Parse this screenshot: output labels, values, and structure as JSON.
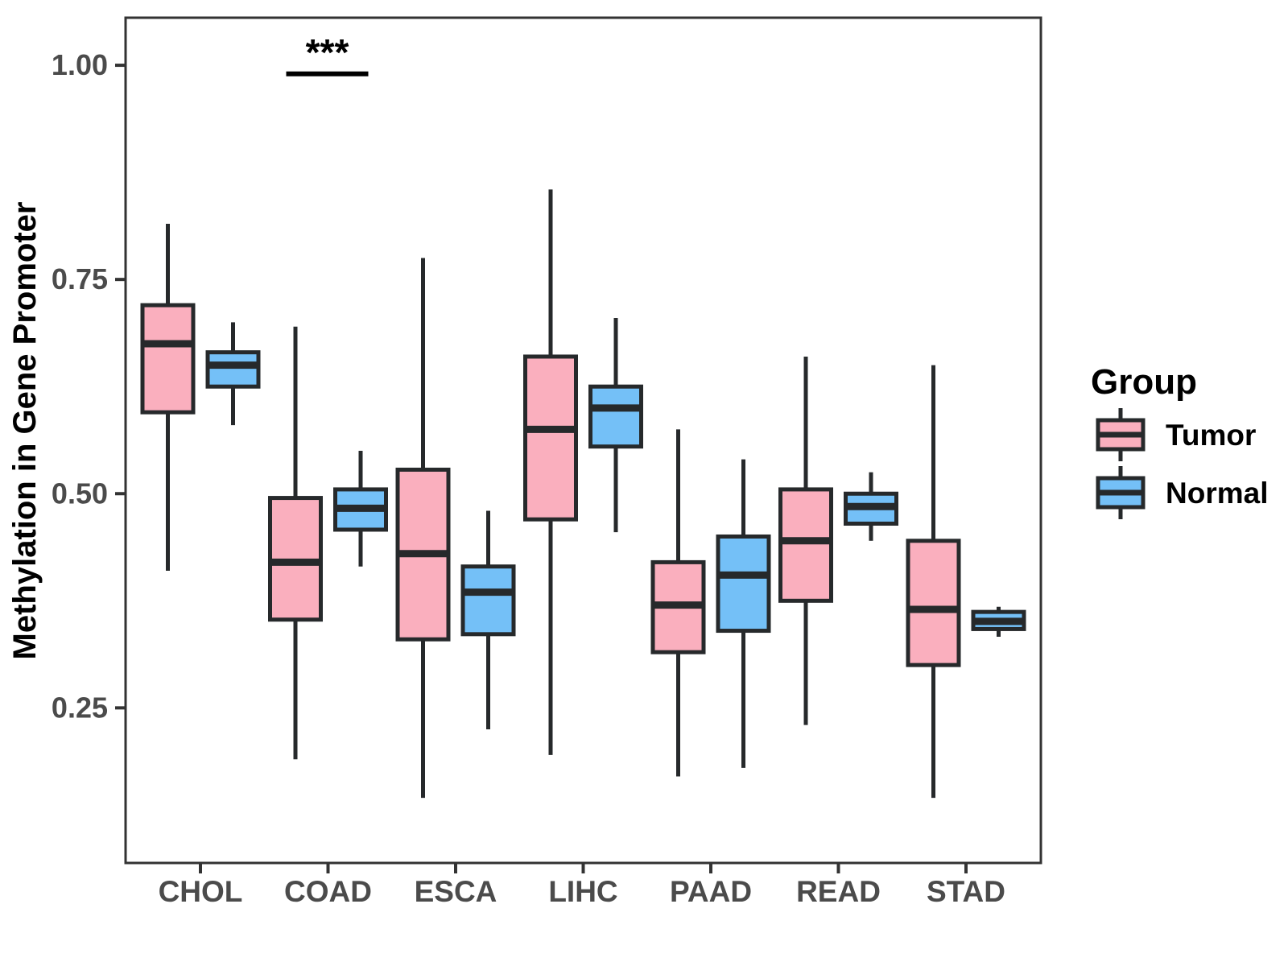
{
  "chart_data": {
    "type": "grouped_boxplot",
    "title": "",
    "ylabel": "Methylation in Gene Promoter",
    "xlabel": "",
    "categories": [
      "CHOL",
      "COAD",
      "ESCA",
      "LIHC",
      "PAAD",
      "READ",
      "STAD"
    ],
    "legend_title": "Group",
    "legend_position": "right",
    "grid": false,
    "ylim": [
      0.069,
      1.0555
    ],
    "yticks": [
      {
        "value": 0.25,
        "label": "0.25"
      },
      {
        "value": 0.5,
        "label": "0.50"
      },
      {
        "value": 0.75,
        "label": "0.75"
      },
      {
        "value": 1.0,
        "label": "1.00"
      }
    ],
    "series": [
      {
        "name": "Tumor",
        "fill_color": "#FAAFBE",
        "boxes": [
          {
            "category": "CHOL",
            "whisker_low": 0.41,
            "q1": 0.595,
            "median": 0.675,
            "q3": 0.72,
            "whisker_high": 0.815
          },
          {
            "category": "COAD",
            "whisker_low": 0.19,
            "q1": 0.353,
            "median": 0.42,
            "q3": 0.495,
            "whisker_high": 0.695
          },
          {
            "category": "ESCA",
            "whisker_low": 0.145,
            "q1": 0.33,
            "median": 0.43,
            "q3": 0.528,
            "whisker_high": 0.775
          },
          {
            "category": "LIHC",
            "whisker_low": 0.195,
            "q1": 0.47,
            "median": 0.575,
            "q3": 0.66,
            "whisker_high": 0.855
          },
          {
            "category": "PAAD",
            "whisker_low": 0.17,
            "q1": 0.315,
            "median": 0.37,
            "q3": 0.42,
            "whisker_high": 0.575
          },
          {
            "category": "READ",
            "whisker_low": 0.23,
            "q1": 0.375,
            "median": 0.445,
            "q3": 0.505,
            "whisker_high": 0.66
          },
          {
            "category": "STAD",
            "whisker_low": 0.145,
            "q1": 0.3,
            "median": 0.365,
            "q3": 0.445,
            "whisker_high": 0.65
          }
        ]
      },
      {
        "name": "Normal",
        "fill_color": "#74C0F7",
        "boxes": [
          {
            "category": "CHOL",
            "whisker_low": 0.58,
            "q1": 0.625,
            "median": 0.65,
            "q3": 0.665,
            "whisker_high": 0.7
          },
          {
            "category": "COAD",
            "whisker_low": 0.415,
            "q1": 0.458,
            "median": 0.483,
            "q3": 0.505,
            "whisker_high": 0.55
          },
          {
            "category": "ESCA",
            "whisker_low": 0.225,
            "q1": 0.336,
            "median": 0.385,
            "q3": 0.415,
            "whisker_high": 0.48
          },
          {
            "category": "LIHC",
            "whisker_low": 0.455,
            "q1": 0.555,
            "median": 0.6,
            "q3": 0.625,
            "whisker_high": 0.705
          },
          {
            "category": "PAAD",
            "whisker_low": 0.18,
            "q1": 0.34,
            "median": 0.405,
            "q3": 0.45,
            "whisker_high": 0.54
          },
          {
            "category": "READ",
            "whisker_low": 0.445,
            "q1": 0.465,
            "median": 0.485,
            "q3": 0.5,
            "whisker_high": 0.525
          },
          {
            "category": "STAD",
            "whisker_low": 0.333,
            "q1": 0.342,
            "median": 0.351,
            "q3": 0.362,
            "whisker_high": 0.368
          }
        ]
      }
    ],
    "annotation": {
      "text": "***",
      "over_category": "COAD",
      "bar_value": 0.99,
      "text_value": 1.013
    },
    "colors": {
      "outline": "#26292B",
      "panel_border": "#333333",
      "tick_label": "#4B4B4B",
      "axis_title": "#000000",
      "background": "#FFFFFF"
    }
  }
}
